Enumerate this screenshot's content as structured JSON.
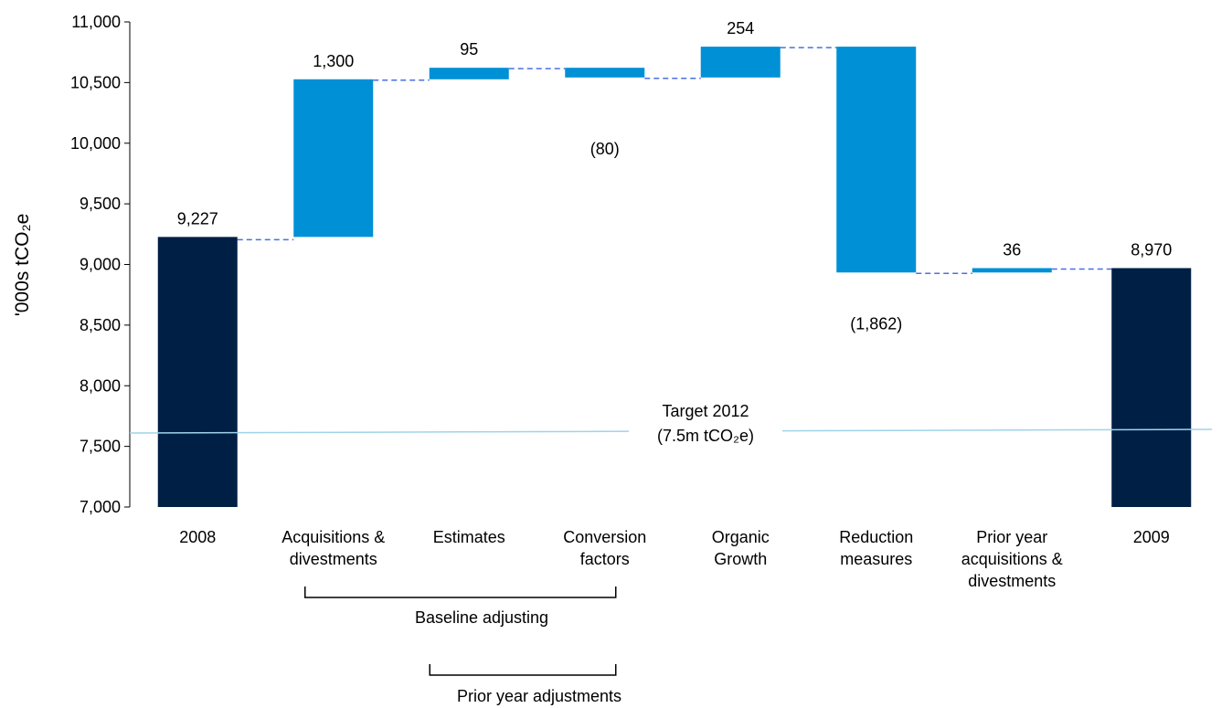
{
  "chart_data": {
    "type": "bar",
    "subtype": "waterfall",
    "ylabel": "'000s tCO₂e",
    "ylim": [
      7000,
      11000
    ],
    "yticks": [
      "7,000",
      "7,500",
      "8,000",
      "8,500",
      "9,000",
      "9,500",
      "10,000",
      "10,500",
      "11,000"
    ],
    "grid": false,
    "categories": [
      [
        "2008"
      ],
      [
        "Acquisitions &",
        "divestments"
      ],
      [
        "Estimates"
      ],
      [
        "Conversion",
        "factors"
      ],
      [
        "Organic",
        "Growth"
      ],
      [
        "Reduction",
        "measures"
      ],
      [
        "Prior year",
        "acquisitions &",
        "divestments"
      ],
      [
        "2009"
      ]
    ],
    "bars": [
      {
        "kind": "total",
        "start": 7000,
        "end": 9227,
        "label": "9,227"
      },
      {
        "kind": "delta",
        "start": 9227,
        "end": 10527,
        "label": "1,300"
      },
      {
        "kind": "delta",
        "start": 10527,
        "end": 10622,
        "label": "95"
      },
      {
        "kind": "delta",
        "start": 10622,
        "end": 10542,
        "label": "(80)"
      },
      {
        "kind": "delta",
        "start": 10542,
        "end": 10796,
        "label": "254"
      },
      {
        "kind": "delta",
        "start": 10796,
        "end": 8934,
        "label": "(1,862)"
      },
      {
        "kind": "delta",
        "start": 8934,
        "end": 8970,
        "label": "36"
      },
      {
        "kind": "total",
        "start": 7000,
        "end": 8970,
        "label": "8,970"
      }
    ],
    "colors": {
      "total": "#001f45",
      "delta": "#0090d5",
      "connector": "#4a6fe0",
      "target_line": "#9fd3ea",
      "bracket": "#000000"
    },
    "target": {
      "label_line1": "Target 2012",
      "label_line2": "(7.5m tCO₂e)",
      "value_start": 7610,
      "value_end": 7640
    },
    "groups": [
      {
        "label": "Baseline adjusting",
        "from": 1,
        "to": 3
      },
      {
        "label": "Prior year adjustments",
        "from": 2,
        "to": 3
      }
    ]
  }
}
